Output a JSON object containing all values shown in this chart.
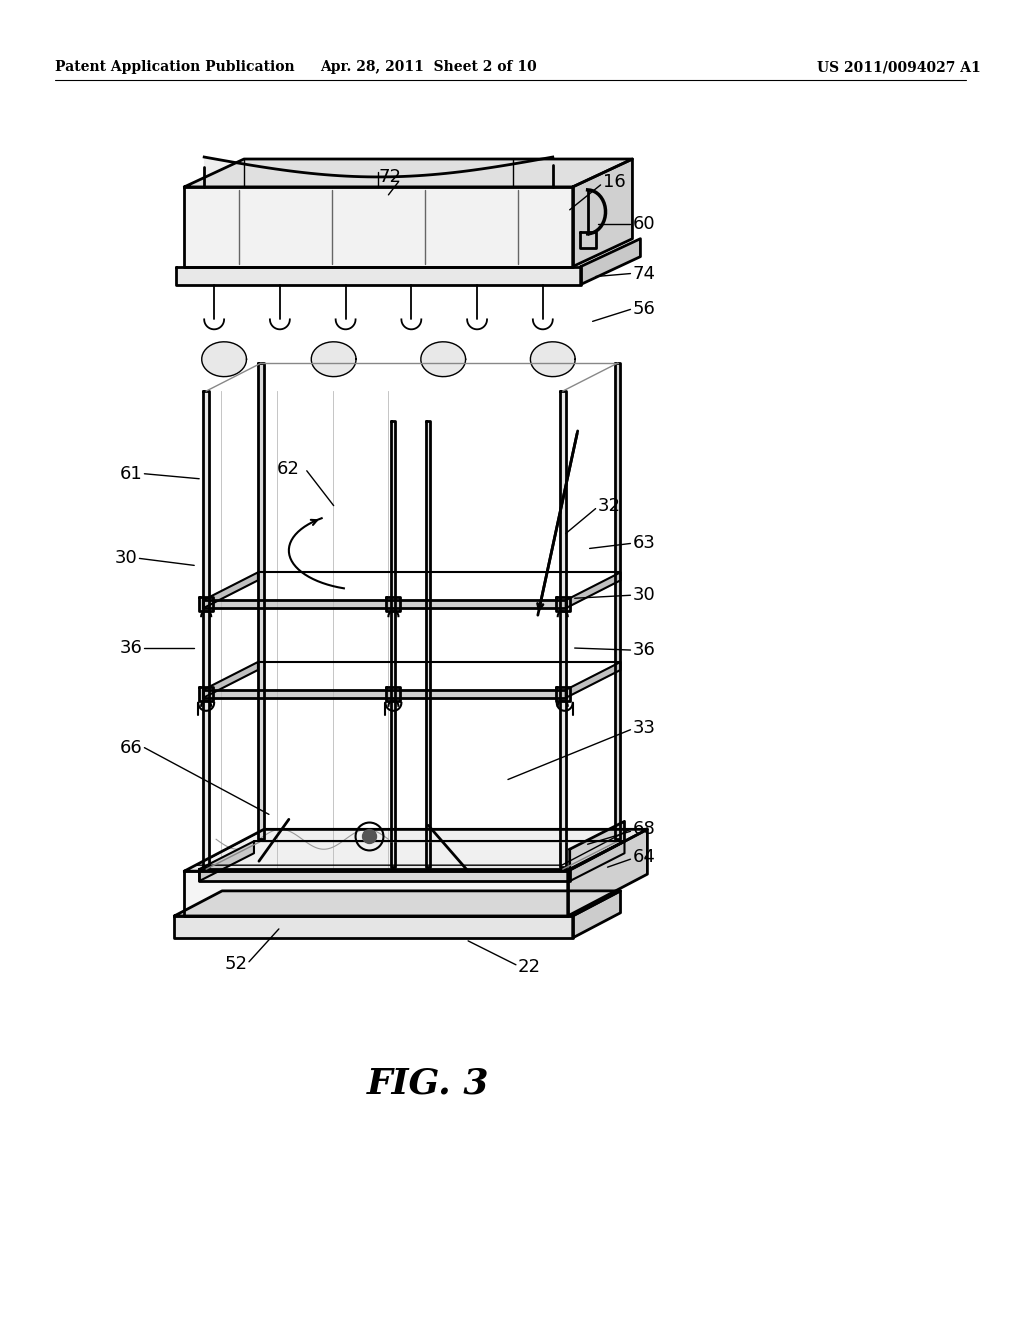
{
  "bg_color": "#ffffff",
  "header_left": "Patent Application Publication",
  "header_center": "Apr. 28, 2011  Sheet 2 of 10",
  "header_right": "US 2011/0094027 A1",
  "fig_label": "FIG. 3",
  "header_fontsize": 10,
  "fig_label_fontsize": 26,
  "label_fontsize": 13,
  "line_color": "#000000",
  "fill_light": "#f0f0f0",
  "fill_mid": "#d8d8d8",
  "fill_dark": "#b0b0b0"
}
